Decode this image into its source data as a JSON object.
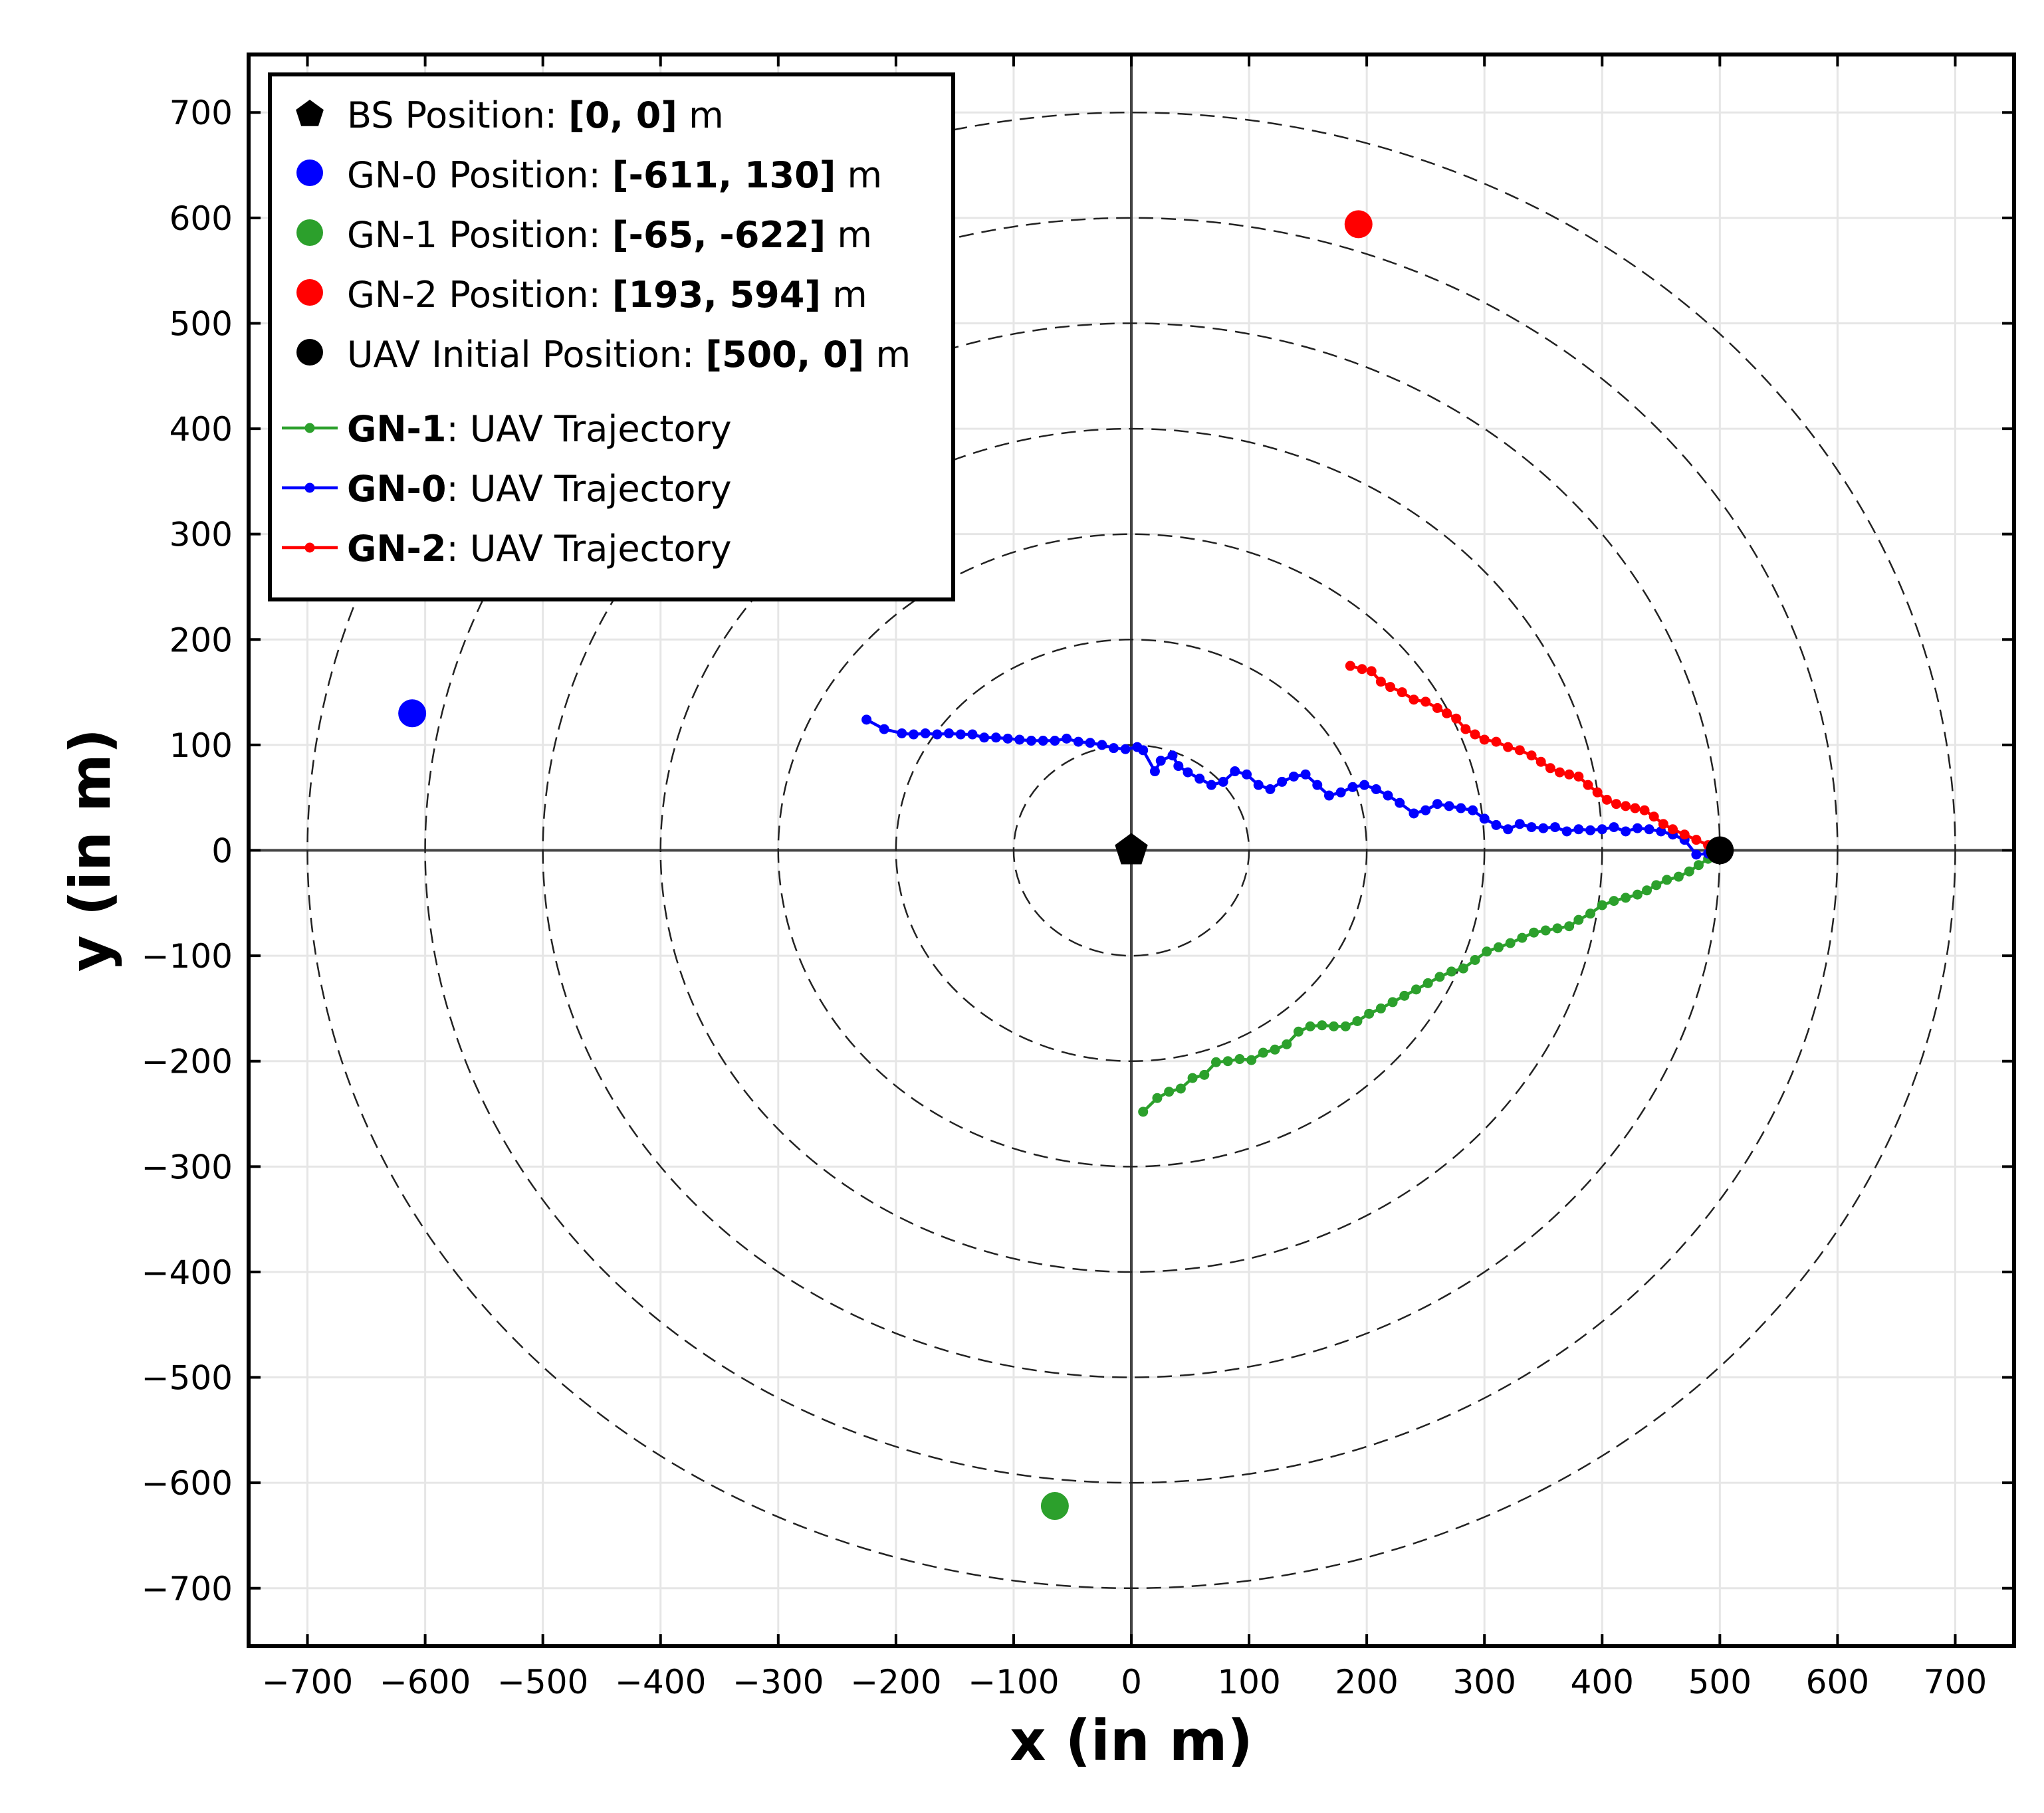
{
  "chart_data": {
    "type": "scatter",
    "title": "",
    "xlabel": "x (in m)",
    "ylabel": "y (in m)",
    "xlim": [
      -750,
      750
    ],
    "ylim": [
      -755,
      755
    ],
    "xticks": [
      -700,
      -600,
      -500,
      -400,
      -300,
      -200,
      -100,
      0,
      100,
      200,
      300,
      400,
      500,
      600,
      700
    ],
    "yticks": [
      -700,
      -600,
      -500,
      -400,
      -300,
      -200,
      -100,
      0,
      100,
      200,
      300,
      400,
      500,
      600,
      700
    ],
    "tick_labels_x": [
      "−700",
      "−600",
      "−500",
      "−400",
      "−300",
      "−200",
      "−100",
      "0",
      "100",
      "200",
      "300",
      "400",
      "500",
      "600",
      "700"
    ],
    "tick_labels_y": [
      "−700",
      "−600",
      "−500",
      "−400",
      "−300",
      "−200",
      "−100",
      "0",
      "100",
      "200",
      "300",
      "400",
      "500",
      "600",
      "700"
    ],
    "grid": true,
    "legend_position": "top-left",
    "range_circles": {
      "radii": [
        100,
        200,
        300,
        400,
        500,
        600,
        700
      ],
      "style": "dashed"
    },
    "points": [
      {
        "name": "BS",
        "x": 0,
        "y": 0,
        "marker": "pentagon",
        "color": "#000000",
        "legend_prefix": "BS Position: ",
        "legend_value": "[0, 0]",
        "legend_suffix": " m"
      },
      {
        "name": "GN-0",
        "x": -611,
        "y": 130,
        "marker": "circle",
        "color": "#0000ff",
        "legend_prefix": "GN-0 Position: ",
        "legend_value": "[-611, 130]",
        "legend_suffix": " m"
      },
      {
        "name": "GN-1",
        "x": -65,
        "y": -622,
        "marker": "circle",
        "color": "#2ca02c",
        "legend_prefix": "GN-1 Position: ",
        "legend_value": "[-65, -622]",
        "legend_suffix": " m"
      },
      {
        "name": "GN-2",
        "x": 193,
        "y": 594,
        "marker": "circle",
        "color": "#ff0000",
        "legend_prefix": "GN-2 Position: ",
        "legend_value": "[193, 594]",
        "legend_suffix": " m"
      },
      {
        "name": "UAV Initial",
        "x": 500,
        "y": 0,
        "marker": "circle",
        "color": "#000000",
        "legend_prefix": "UAV Initial Position: ",
        "legend_value": "[500, 0]",
        "legend_suffix": " m"
      }
    ],
    "series": [
      {
        "name": "GN-1",
        "label_suffix": ": UAV Trajectory",
        "color": "#2ca02c",
        "points": [
          [
            500,
            0
          ],
          [
            490,
            -8
          ],
          [
            482,
            -14
          ],
          [
            474,
            -20
          ],
          [
            465,
            -25
          ],
          [
            455,
            -28
          ],
          [
            446,
            -33
          ],
          [
            438,
            -38
          ],
          [
            430,
            -42
          ],
          [
            420,
            -45
          ],
          [
            410,
            -48
          ],
          [
            400,
            -52
          ],
          [
            390,
            -60
          ],
          [
            380,
            -66
          ],
          [
            372,
            -72
          ],
          [
            362,
            -74
          ],
          [
            352,
            -76
          ],
          [
            342,
            -78
          ],
          [
            332,
            -83
          ],
          [
            322,
            -88
          ],
          [
            312,
            -92
          ],
          [
            302,
            -96
          ],
          [
            292,
            -104
          ],
          [
            282,
            -112
          ],
          [
            272,
            -115
          ],
          [
            262,
            -120
          ],
          [
            252,
            -126
          ],
          [
            242,
            -132
          ],
          [
            232,
            -138
          ],
          [
            222,
            -144
          ],
          [
            212,
            -150
          ],
          [
            202,
            -155
          ],
          [
            192,
            -162
          ],
          [
            182,
            -167
          ],
          [
            172,
            -167
          ],
          [
            162,
            -166
          ],
          [
            152,
            -167
          ],
          [
            142,
            -172
          ],
          [
            132,
            -184
          ],
          [
            122,
            -189
          ],
          [
            112,
            -192
          ],
          [
            102,
            -199
          ],
          [
            92,
            -198
          ],
          [
            82,
            -200
          ],
          [
            72,
            -201
          ],
          [
            62,
            -213
          ],
          [
            52,
            -216
          ],
          [
            42,
            -226
          ],
          [
            32,
            -229
          ],
          [
            22,
            -235
          ],
          [
            10,
            -248
          ]
        ]
      },
      {
        "name": "GN-0",
        "label_suffix": ": UAV Trajectory",
        "color": "#0000ff",
        "points": [
          [
            500,
            0
          ],
          [
            490,
            -3
          ],
          [
            480,
            -4
          ],
          [
            470,
            10
          ],
          [
            460,
            15
          ],
          [
            450,
            18
          ],
          [
            440,
            20
          ],
          [
            430,
            21
          ],
          [
            420,
            18
          ],
          [
            410,
            22
          ],
          [
            400,
            20
          ],
          [
            390,
            19
          ],
          [
            380,
            20
          ],
          [
            370,
            18
          ],
          [
            360,
            22
          ],
          [
            350,
            21
          ],
          [
            340,
            22
          ],
          [
            330,
            25
          ],
          [
            320,
            20
          ],
          [
            310,
            24
          ],
          [
            300,
            30
          ],
          [
            290,
            38
          ],
          [
            280,
            40
          ],
          [
            270,
            42
          ],
          [
            260,
            44
          ],
          [
            250,
            38
          ],
          [
            240,
            35
          ],
          [
            228,
            45
          ],
          [
            218,
            52
          ],
          [
            208,
            58
          ],
          [
            198,
            62
          ],
          [
            188,
            60
          ],
          [
            178,
            55
          ],
          [
            168,
            52
          ],
          [
            158,
            62
          ],
          [
            148,
            72
          ],
          [
            138,
            70
          ],
          [
            128,
            65
          ],
          [
            118,
            58
          ],
          [
            108,
            62
          ],
          [
            98,
            72
          ],
          [
            88,
            75
          ],
          [
            78,
            65
          ],
          [
            68,
            62
          ],
          [
            58,
            68
          ],
          [
            48,
            74
          ],
          [
            40,
            80
          ],
          [
            35,
            90
          ],
          [
            25,
            85
          ],
          [
            20,
            75
          ],
          [
            10,
            95
          ],
          [
            5,
            98
          ],
          [
            -5,
            96
          ],
          [
            -15,
            97
          ],
          [
            -25,
            100
          ],
          [
            -35,
            102
          ],
          [
            -45,
            103
          ],
          [
            -55,
            106
          ],
          [
            -65,
            104
          ],
          [
            -75,
            104
          ],
          [
            -85,
            104
          ],
          [
            -95,
            105
          ],
          [
            -105,
            106
          ],
          [
            -115,
            107
          ],
          [
            -125,
            107
          ],
          [
            -135,
            110
          ],
          [
            -145,
            110
          ],
          [
            -155,
            111
          ],
          [
            -165,
            110
          ],
          [
            -175,
            111
          ],
          [
            -185,
            110
          ],
          [
            -195,
            111
          ],
          [
            -210,
            115
          ],
          [
            -225,
            124
          ]
        ]
      },
      {
        "name": "GN-2",
        "label_suffix": ": UAV Trajectory",
        "color": "#ff0000",
        "points": [
          [
            500,
            0
          ],
          [
            490,
            5
          ],
          [
            480,
            10
          ],
          [
            470,
            15
          ],
          [
            460,
            20
          ],
          [
            452,
            25
          ],
          [
            444,
            32
          ],
          [
            436,
            38
          ],
          [
            428,
            40
          ],
          [
            420,
            42
          ],
          [
            412,
            44
          ],
          [
            404,
            48
          ],
          [
            396,
            55
          ],
          [
            388,
            62
          ],
          [
            380,
            70
          ],
          [
            372,
            72
          ],
          [
            364,
            74
          ],
          [
            356,
            78
          ],
          [
            348,
            84
          ],
          [
            340,
            90
          ],
          [
            330,
            95
          ],
          [
            320,
            98
          ],
          [
            310,
            103
          ],
          [
            300,
            105
          ],
          [
            292,
            110
          ],
          [
            284,
            115
          ],
          [
            276,
            125
          ],
          [
            268,
            130
          ],
          [
            260,
            135
          ],
          [
            250,
            141
          ],
          [
            240,
            143
          ],
          [
            230,
            150
          ],
          [
            220,
            155
          ],
          [
            212,
            160
          ],
          [
            204,
            170
          ],
          [
            196,
            172
          ],
          [
            186,
            175
          ]
        ]
      }
    ]
  }
}
